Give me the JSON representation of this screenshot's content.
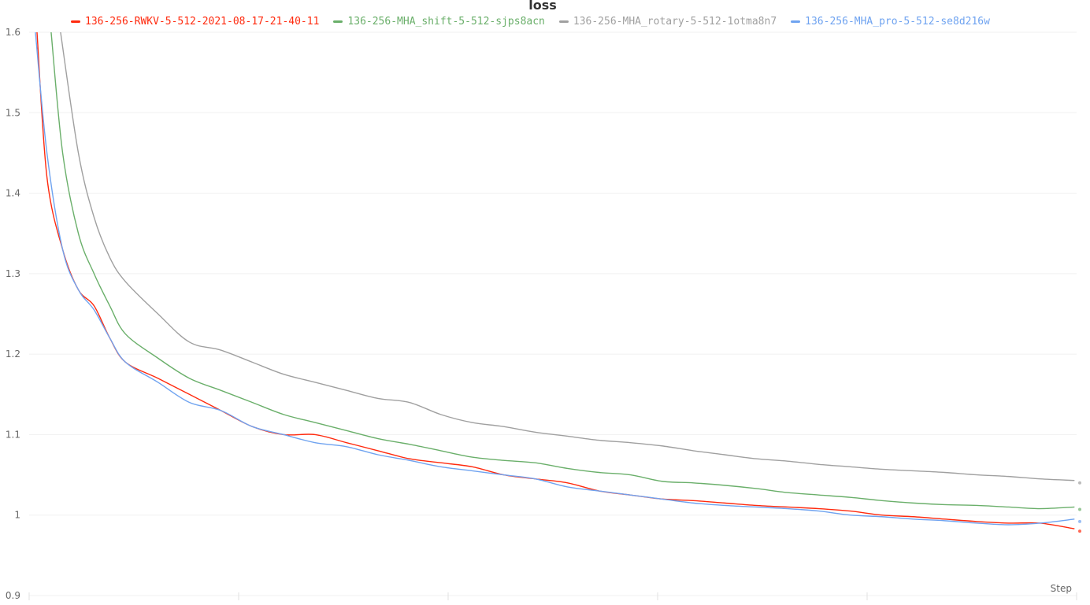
{
  "chart_data": {
    "type": "line",
    "title": "loss",
    "xlabel": "Step",
    "ylabel": "",
    "xlim": [
      0,
      100
    ],
    "ylim": [
      0.9,
      1.6
    ],
    "y_ticks": [
      "0.9",
      "1",
      "1.1",
      "1.2",
      "1.3",
      "1.4",
      "1.5",
      "1.6"
    ],
    "grid": true,
    "legend_position": "top",
    "series": [
      {
        "name": "136-256-RWKV-5-512-2021-08-17-21-40-11",
        "color": "#ff2a0e",
        "x": [
          0.75,
          1.7,
          3.2,
          4.7,
          6.2,
          7.7,
          9.2,
          12.3,
          15.3,
          18.3,
          21.3,
          24.3,
          27.3,
          30.3,
          33.3,
          36.3,
          39.3,
          42.3,
          45.3,
          48.3,
          51.4,
          54.4,
          57.4,
          60.4,
          63.4,
          66.4,
          69.4,
          72.4,
          75.4,
          78.4,
          81.4,
          84.4,
          87.4,
          90.5,
          93.5,
          96.5,
          99.8
        ],
        "y": [
          1.6,
          1.42,
          1.33,
          1.28,
          1.26,
          1.22,
          1.19,
          1.17,
          1.15,
          1.13,
          1.11,
          1.1,
          1.1,
          1.09,
          1.08,
          1.07,
          1.065,
          1.06,
          1.05,
          1.045,
          1.04,
          1.03,
          1.025,
          1.02,
          1.018,
          1.015,
          1.012,
          1.01,
          1.008,
          1.005,
          1.0,
          0.998,
          0.995,
          0.992,
          0.99,
          0.99,
          0.983
        ]
      },
      {
        "name": "136-256-MHA_shift-5-512-sjps8acn",
        "color": "#6aaf6a",
        "x": [
          2.1,
          3.2,
          4.7,
          6.2,
          7.7,
          9.2,
          12.3,
          15.3,
          18.3,
          21.3,
          24.3,
          27.3,
          30.3,
          33.3,
          36.3,
          39.3,
          42.3,
          45.3,
          48.3,
          51.4,
          54.4,
          57.4,
          60.4,
          63.4,
          66.4,
          69.4,
          72.4,
          75.4,
          78.4,
          81.4,
          84.4,
          87.4,
          90.5,
          93.5,
          96.5,
          99.8
        ],
        "y": [
          1.6,
          1.45,
          1.35,
          1.3,
          1.26,
          1.225,
          1.195,
          1.17,
          1.155,
          1.14,
          1.125,
          1.115,
          1.105,
          1.095,
          1.088,
          1.08,
          1.072,
          1.068,
          1.065,
          1.058,
          1.053,
          1.05,
          1.042,
          1.04,
          1.037,
          1.033,
          1.028,
          1.025,
          1.022,
          1.018,
          1.015,
          1.013,
          1.012,
          1.01,
          1.008,
          1.01
        ]
      },
      {
        "name": "136-256-MHA_rotary-5-512-1otma8n7",
        "color": "#a0a0a0",
        "x": [
          3.0,
          4.7,
          6.2,
          7.7,
          9.2,
          12.3,
          15.3,
          18.3,
          21.3,
          24.3,
          27.3,
          30.3,
          33.3,
          36.3,
          39.3,
          42.3,
          45.3,
          48.3,
          51.4,
          54.4,
          57.4,
          60.4,
          63.4,
          66.4,
          69.4,
          72.4,
          75.4,
          78.4,
          81.4,
          84.4,
          87.4,
          90.5,
          93.5,
          96.5,
          99.8
        ],
        "y": [
          1.6,
          1.45,
          1.37,
          1.32,
          1.29,
          1.25,
          1.215,
          1.205,
          1.19,
          1.175,
          1.165,
          1.155,
          1.145,
          1.14,
          1.125,
          1.115,
          1.11,
          1.103,
          1.098,
          1.093,
          1.09,
          1.086,
          1.08,
          1.075,
          1.07,
          1.067,
          1.063,
          1.06,
          1.057,
          1.055,
          1.053,
          1.05,
          1.048,
          1.045,
          1.043
        ]
      },
      {
        "name": "136-256-MHA_pro-5-512-se8d216w",
        "color": "#6fa3f0",
        "x": [
          0.6,
          1.7,
          3.2,
          4.7,
          6.2,
          7.7,
          9.2,
          12.3,
          15.3,
          18.3,
          21.3,
          24.3,
          27.3,
          30.3,
          33.3,
          36.3,
          39.3,
          42.3,
          45.3,
          48.3,
          51.4,
          54.4,
          57.4,
          60.4,
          63.4,
          66.4,
          69.4,
          72.4,
          75.4,
          78.4,
          81.4,
          84.4,
          87.4,
          90.5,
          93.5,
          96.5,
          99.8
        ],
        "y": [
          1.6,
          1.45,
          1.33,
          1.28,
          1.255,
          1.22,
          1.19,
          1.165,
          1.14,
          1.13,
          1.11,
          1.1,
          1.09,
          1.085,
          1.075,
          1.068,
          1.06,
          1.055,
          1.05,
          1.045,
          1.035,
          1.03,
          1.025,
          1.02,
          1.015,
          1.012,
          1.01,
          1.008,
          1.005,
          1.0,
          0.998,
          0.995,
          0.993,
          0.99,
          0.988,
          0.99,
          0.995
        ]
      }
    ]
  }
}
